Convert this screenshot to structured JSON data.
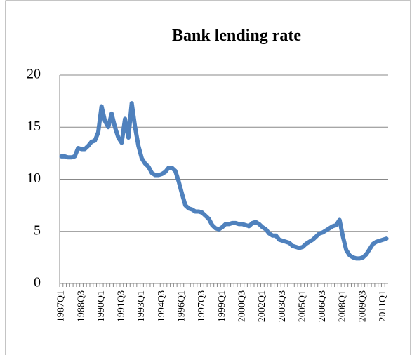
{
  "chart_data": {
    "type": "line",
    "title": "Bank lending rate",
    "categories": [
      "1987Q1",
      null,
      null,
      null,
      null,
      null,
      "1988Q3",
      null,
      null,
      null,
      null,
      null,
      "1990Q1",
      null,
      null,
      null,
      null,
      null,
      "1991Q3",
      null,
      null,
      null,
      null,
      null,
      "1993Q1",
      null,
      null,
      null,
      null,
      null,
      "1994Q3",
      null,
      null,
      null,
      null,
      null,
      "1996Q1",
      null,
      null,
      null,
      null,
      null,
      "1997Q3",
      null,
      null,
      null,
      null,
      null,
      "1999Q1",
      null,
      null,
      null,
      null,
      null,
      "2000Q3",
      null,
      null,
      null,
      null,
      null,
      "2002Q1",
      null,
      null,
      null,
      null,
      null,
      "2003Q3",
      null,
      null,
      null,
      null,
      null,
      "2005Q1",
      null,
      null,
      null,
      null,
      null,
      "2006Q3",
      null,
      null,
      null,
      null,
      null,
      "2008Q1",
      null,
      null,
      null,
      null,
      null,
      "2009Q3",
      null,
      null,
      null,
      null,
      null,
      "2011Q1",
      null
    ],
    "series": [
      {
        "name": "Bank lending rate",
        "color": "#4f81bd",
        "values": [
          12.2,
          12.2,
          12.1,
          12.1,
          12.2,
          13.0,
          12.9,
          12.9,
          13.2,
          13.6,
          13.7,
          14.5,
          17.0,
          15.6,
          15.0,
          16.3,
          15.0,
          14.0,
          13.5,
          15.8,
          14.0,
          17.3,
          15.0,
          13.2,
          12.0,
          11.5,
          11.2,
          10.6,
          10.4,
          10.4,
          10.5,
          10.7,
          11.1,
          11.1,
          10.8,
          9.8,
          8.6,
          7.5,
          7.2,
          7.1,
          6.9,
          6.9,
          6.8,
          6.5,
          6.2,
          5.6,
          5.3,
          5.2,
          5.4,
          5.7,
          5.7,
          5.8,
          5.8,
          5.7,
          5.7,
          5.6,
          5.5,
          5.8,
          5.9,
          5.7,
          5.4,
          5.2,
          4.8,
          4.6,
          4.6,
          4.2,
          4.1,
          4.0,
          3.9,
          3.6,
          3.5,
          3.4,
          3.5,
          3.8,
          4.0,
          4.2,
          4.5,
          4.8,
          4.9,
          5.1,
          5.3,
          5.5,
          5.6,
          6.1,
          4.5,
          3.2,
          2.7,
          2.5,
          2.4,
          2.4,
          2.5,
          2.8,
          3.3,
          3.8,
          4.0,
          4.1,
          4.2,
          4.3
        ]
      }
    ],
    "ylim": [
      0,
      20
    ],
    "yticks": [
      0,
      5,
      10,
      15,
      20
    ],
    "grid": true
  }
}
